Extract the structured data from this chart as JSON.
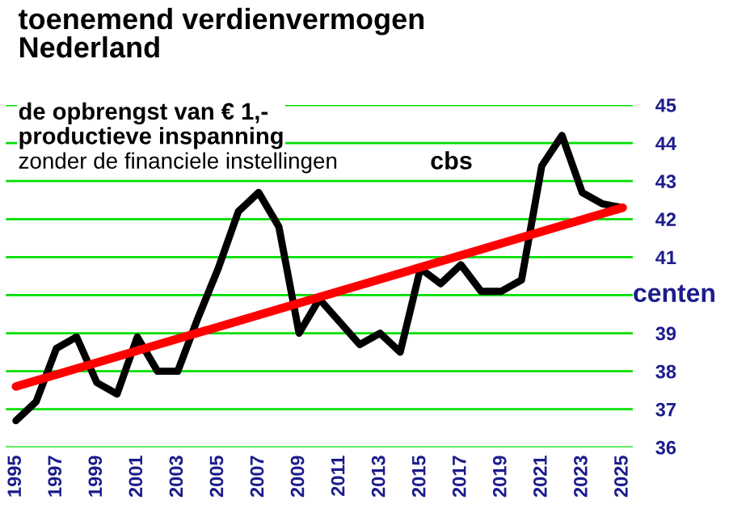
{
  "chart_data": {
    "type": "line",
    "title": "toenemend verdienvermogen\nNederland",
    "subtitle": "de opbrengst van € 1,-\nproductieve inspanning",
    "ylabel": "centen",
    "annotations": [
      "zonder de financiele instellingen",
      "cbs"
    ],
    "x": [
      1995,
      1996,
      1997,
      1998,
      1999,
      2000,
      2001,
      2002,
      2003,
      2004,
      2005,
      2006,
      2007,
      2008,
      2009,
      2010,
      2011,
      2012,
      2013,
      2014,
      2015,
      2016,
      2017,
      2018,
      2019,
      2020,
      2021,
      2022,
      2023,
      2024,
      2025
    ],
    "series": [
      {
        "color": "#000000",
        "values": [
          36.7,
          37.2,
          38.6,
          38.9,
          37.7,
          37.4,
          38.9,
          38.0,
          38.0,
          39.4,
          40.7,
          42.2,
          42.7,
          41.8,
          39.0,
          39.9,
          39.3,
          38.7,
          39.0,
          38.5,
          40.7,
          40.3,
          40.8,
          40.1,
          40.1,
          40.4,
          43.4,
          44.2,
          42.7,
          42.4,
          42.3
        ]
      },
      {
        "type": "line",
        "color": "#ff0000",
        "x": [
          1995,
          2025
        ],
        "values": [
          37.6,
          42.3
        ]
      }
    ],
    "xlim": [
      1994.5,
      2025.5
    ],
    "xticks": [
      1995,
      1997,
      1999,
      2001,
      2003,
      2005,
      2007,
      2009,
      2011,
      2013,
      2015,
      2017,
      2019,
      2021,
      2023,
      2025
    ],
    "ylim": [
      36,
      45
    ],
    "yticks": [
      36,
      37,
      38,
      39,
      {
        "value": 40,
        "label": null
      },
      41,
      42,
      43,
      44,
      45
    ],
    "grid": "y",
    "marker": "none",
    "line_style": "solid",
    "legend": false
  }
}
